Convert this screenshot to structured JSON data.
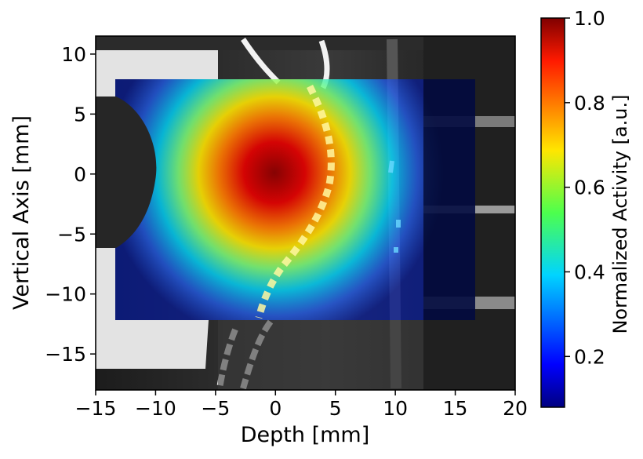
{
  "chart_data": {
    "type": "heatmap",
    "title": "",
    "xlabel": "Depth [mm]",
    "ylabel": "Vertical Axis [mm]",
    "xlim": [
      -15,
      20
    ],
    "ylim": [
      -18,
      11.5
    ],
    "x_ticks": [
      {
        "value": -15,
        "label": "−15"
      },
      {
        "value": -10,
        "label": "−10"
      },
      {
        "value": -5,
        "label": "−5"
      },
      {
        "value": 0,
        "label": "0"
      },
      {
        "value": 5,
        "label": "5"
      },
      {
        "value": 10,
        "label": "10"
      },
      {
        "value": 15,
        "label": "15"
      },
      {
        "value": 20,
        "label": "20"
      }
    ],
    "y_ticks": [
      {
        "value": 10,
        "label": "10"
      },
      {
        "value": 5,
        "label": "5"
      },
      {
        "value": 0,
        "label": "0"
      },
      {
        "value": -5,
        "label": "−5"
      },
      {
        "value": -10,
        "label": "−10"
      },
      {
        "value": -15,
        "label": "−15"
      }
    ],
    "background": "grayscale CT slice",
    "overlay": {
      "colormap": "jet",
      "x_range": [
        -13.5,
        16.5
      ],
      "y_range": [
        -12.2,
        7.8
      ],
      "peak": {
        "x": 0,
        "y": 0,
        "value": 1.0
      }
    },
    "colorbar": {
      "label": "Normalized Activity [a.u.]",
      "range": [
        0.08,
        1.0
      ],
      "ticks": [
        {
          "value": 1.0,
          "label": "1.0"
        },
        {
          "value": 0.8,
          "label": "0.8"
        },
        {
          "value": 0.6,
          "label": "0.6"
        },
        {
          "value": 0.4,
          "label": "0.4"
        },
        {
          "value": 0.2,
          "label": "0.2"
        }
      ]
    },
    "grid": false,
    "legend": "none"
  }
}
